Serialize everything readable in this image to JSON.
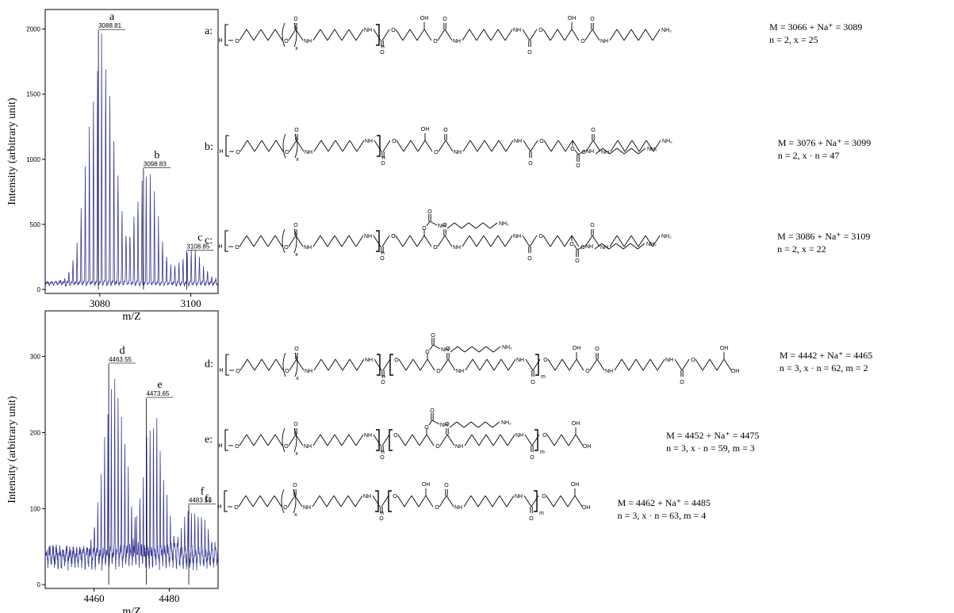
{
  "chart_data": [
    {
      "type": "line",
      "panel": "top",
      "xlabel": "m/Z",
      "ylabel": "Intensity (arbitrary unit)",
      "xlim": [
        3068,
        3106
      ],
      "ylim": [
        -30,
        2150
      ],
      "xticks": [
        3080,
        3100
      ],
      "yticks": [
        0,
        500,
        1000,
        1500,
        2000
      ],
      "grid": false,
      "peak_spacing": 0.9,
      "noise_level": 60,
      "clusters": [
        {
          "center": 3080.4,
          "height": 1960,
          "width": 1.7
        },
        {
          "center": 3090.2,
          "height": 900,
          "width": 1.5
        },
        {
          "center": 3100.1,
          "height": 265,
          "width": 1.5
        }
      ],
      "peaks": [
        {
          "letter": "a",
          "value": "3088.81",
          "x": 3079.7,
          "y": 1960
        },
        {
          "letter": "b",
          "value": "3098.83",
          "x": 3089.6,
          "y": 900
        },
        {
          "letter": "c",
          "value": "3108.85",
          "x": 3099.1,
          "y": 265
        }
      ]
    },
    {
      "type": "line",
      "panel": "bottom",
      "xlabel": "m/Z",
      "ylabel": "Intensity (arbitrary unit)",
      "xlim": [
        4447,
        4493
      ],
      "ylim": [
        -5,
        360
      ],
      "xticks": [
        4460,
        4480
      ],
      "yticks": [
        0,
        100,
        200,
        300
      ],
      "grid": false,
      "peak_spacing": 0.9,
      "noise_level": 45,
      "clusters": [
        {
          "center": 4465.5,
          "height": 245,
          "width": 1.7
        },
        {
          "center": 4475.8,
          "height": 195,
          "width": 1.6
        },
        {
          "center": 4486.8,
          "height": 60,
          "width": 1.8
        }
      ],
      "peaks": [
        {
          "letter": "d",
          "value": "4463.55",
          "x": 4463.9,
          "y": 285
        },
        {
          "letter": "e",
          "value": "4473.65",
          "x": 4473.9,
          "y": 240
        },
        {
          "letter": "f",
          "value": "4483.58",
          "x": 4485.2,
          "y": 100
        }
      ]
    }
  ],
  "structures": {
    "a": {
      "label": "a:",
      "mass_line": "M = 3066 + Na⁺ = 3089",
      "params_line": "n = 2, x = 25"
    },
    "b": {
      "label": "b:",
      "mass_line": "M = 3076 + Na⁺ = 3099",
      "params_line": "n = 2, x · n = 47"
    },
    "c": {
      "label": "c:",
      "mass_line": "M = 3086 + Na⁺ = 3109",
      "params_line": "n = 2, x = 22"
    },
    "d": {
      "label": "d:",
      "mass_line": "M = 4442 + Na⁺ = 4465",
      "params_line": "n = 3, x · n = 62, m = 2"
    },
    "e": {
      "label": "e:",
      "mass_line": "M = 4452 + Na⁺ = 4475",
      "params_line": "n = 3, x · n = 59, m = 3"
    },
    "f": {
      "label": "f:",
      "mass_line": "M = 4462 + Na⁺ = 4485",
      "params_line": "n = 3, x · n = 63, m = 4"
    }
  },
  "atoms": {
    "h": "H",
    "o": "O",
    "oh": "OH",
    "nh": "NH",
    "nh2": "NH₂",
    "x": "x",
    "n": "n",
    "m": "m"
  }
}
